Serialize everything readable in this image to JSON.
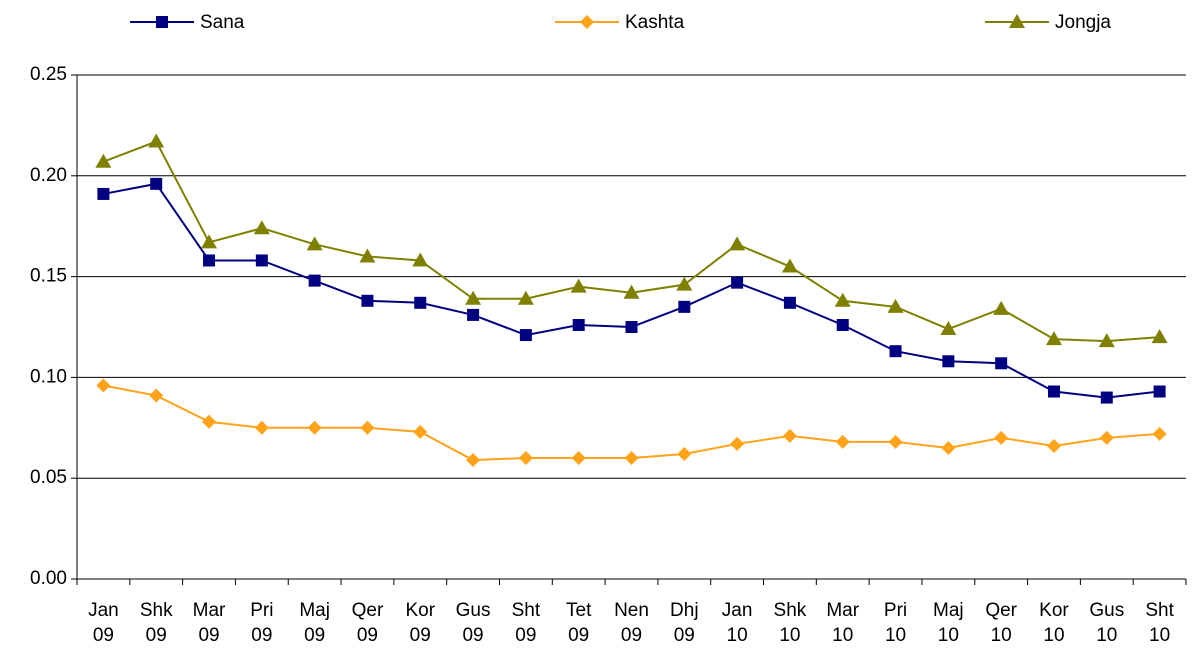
{
  "chart_data": {
    "type": "line",
    "categories": [
      "Jan 09",
      "Shk 09",
      "Mar 09",
      "Pri 09",
      "Maj 09",
      "Qer 09",
      "Kor 09",
      "Gus 09",
      "Sht 09",
      "Tet 09",
      "Nen 09",
      "Dhj 09",
      "Jan 10",
      "Shk 10",
      "Mar 10",
      "Pri 10",
      "Maj 10",
      "Qer 10",
      "Kor 10",
      "Gus 10",
      "Sht 10"
    ],
    "series": [
      {
        "name": "Sana",
        "color": "#000080",
        "marker": "square",
        "values": [
          0.191,
          0.196,
          0.158,
          0.158,
          0.148,
          0.138,
          0.137,
          0.131,
          0.121,
          0.126,
          0.125,
          0.135,
          0.147,
          0.137,
          0.126,
          0.113,
          0.108,
          0.107,
          0.093,
          0.09,
          0.093
        ]
      },
      {
        "name": "Kashta",
        "color": "#ffa31a",
        "marker": "diamond",
        "values": [
          0.096,
          0.091,
          0.078,
          0.075,
          0.075,
          0.075,
          0.073,
          0.059,
          0.06,
          0.06,
          0.06,
          0.062,
          0.067,
          0.071,
          0.068,
          0.068,
          0.065,
          0.07,
          0.066,
          0.07,
          0.072
        ]
      },
      {
        "name": "Jongja",
        "color": "#808000",
        "marker": "triangle",
        "values": [
          0.207,
          0.217,
          0.167,
          0.174,
          0.166,
          0.16,
          0.158,
          0.139,
          0.139,
          0.145,
          0.142,
          0.146,
          0.166,
          0.155,
          0.138,
          0.135,
          0.124,
          0.134,
          0.119,
          0.118,
          0.12
        ]
      }
    ],
    "ylim": [
      0,
      0.25
    ],
    "yticks": [
      {
        "value": 0,
        "label": "0.00"
      },
      {
        "value": 0.05,
        "label": "0.05"
      },
      {
        "value": 0.1,
        "label": "0.10"
      },
      {
        "value": 0.15,
        "label": "0.15"
      },
      {
        "value": 0.2,
        "label": "0.20"
      },
      {
        "value": 0.25,
        "label": "0.25"
      }
    ],
    "grid": true,
    "legend": "top"
  }
}
